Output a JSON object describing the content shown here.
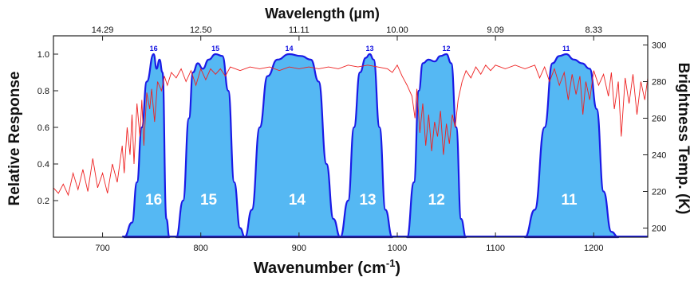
{
  "chart_data": {
    "type": "area",
    "xlabel_main": "Wavenumber (cm",
    "xlabel_sup": "-1",
    "xlabel_tail": ")",
    "x2label": "Wavelength (µm)",
    "ylabel": "Relative Response",
    "y2label": "Brightness Temp. (K)",
    "xlim": [
      650,
      1255
    ],
    "ylim": [
      0,
      1.1
    ],
    "y2lim": [
      195,
      305
    ],
    "x_ticks": [
      700,
      800,
      900,
      1000,
      1100,
      1200
    ],
    "x_tick_labels": [
      "700",
      "800",
      "900",
      "1000",
      "1100",
      "1200"
    ],
    "y_ticks": [
      0.2,
      0.4,
      0.6,
      0.8,
      1.0
    ],
    "y_tick_labels": [
      "0.2",
      "0.4",
      "0.6",
      "0.8",
      "1.0"
    ],
    "y2_ticks": [
      200,
      220,
      240,
      260,
      280,
      300
    ],
    "y2_tick_labels": [
      "200",
      "220",
      "240",
      "260",
      "280",
      "300"
    ],
    "x2_ticks": [
      {
        "wavenumber": 700,
        "label": "14.29"
      },
      {
        "wavenumber": 800,
        "label": "12.50"
      },
      {
        "wavenumber": 900,
        "label": "11.11"
      },
      {
        "wavenumber": 1000,
        "label": "10.00"
      },
      {
        "wavenumber": 1100,
        "label": "9.09"
      },
      {
        "wavenumber": 1200,
        "label": "8.33"
      }
    ],
    "bands": [
      {
        "name": "16",
        "center": 752,
        "profile": [
          [
            722,
            0
          ],
          [
            730,
            0.08
          ],
          [
            735,
            0.3
          ],
          [
            740,
            0.6
          ],
          [
            745,
            0.85
          ],
          [
            752,
            1.0
          ],
          [
            755,
            0.92
          ],
          [
            758,
            0.97
          ],
          [
            761,
            0.9
          ],
          [
            765,
            0.1
          ],
          [
            768,
            0
          ]
        ]
      },
      {
        "name": "15",
        "center": 808,
        "profile": [
          [
            775,
            0
          ],
          [
            782,
            0.2
          ],
          [
            788,
            0.65
          ],
          [
            792,
            0.9
          ],
          [
            797,
            0.95
          ],
          [
            802,
            0.92
          ],
          [
            808,
            0.97
          ],
          [
            815,
            1.0
          ],
          [
            822,
            0.99
          ],
          [
            828,
            0.8
          ],
          [
            834,
            0.3
          ],
          [
            840,
            0.05
          ],
          [
            845,
            0
          ]
        ]
      },
      {
        "name": "14",
        "center": 898,
        "profile": [
          [
            845,
            0
          ],
          [
            852,
            0.15
          ],
          [
            860,
            0.6
          ],
          [
            868,
            0.88
          ],
          [
            878,
            0.97
          ],
          [
            890,
            1.0
          ],
          [
            902,
            0.99
          ],
          [
            912,
            0.97
          ],
          [
            920,
            0.85
          ],
          [
            928,
            0.4
          ],
          [
            935,
            0.1
          ],
          [
            942,
            0
          ]
        ]
      },
      {
        "name": "13",
        "center": 970,
        "profile": [
          [
            942,
            0
          ],
          [
            950,
            0.2
          ],
          [
            956,
            0.6
          ],
          [
            962,
            0.9
          ],
          [
            968,
            0.98
          ],
          [
            972,
            1.0
          ],
          [
            976,
            0.97
          ],
          [
            982,
            0.6
          ],
          [
            988,
            0.15
          ],
          [
            995,
            0
          ]
        ]
      },
      {
        "name": "12",
        "center": 1040,
        "profile": [
          [
            1010,
            0
          ],
          [
            1017,
            0.3
          ],
          [
            1022,
            0.8
          ],
          [
            1026,
            0.95
          ],
          [
            1032,
            0.97
          ],
          [
            1038,
            0.96
          ],
          [
            1044,
            0.99
          ],
          [
            1050,
            1.0
          ],
          [
            1055,
            0.95
          ],
          [
            1060,
            0.6
          ],
          [
            1065,
            0.1
          ],
          [
            1070,
            0
          ]
        ]
      },
      {
        "name": "11",
        "center": 1175,
        "profile": [
          [
            1130,
            0
          ],
          [
            1140,
            0.15
          ],
          [
            1150,
            0.6
          ],
          [
            1158,
            0.95
          ],
          [
            1165,
            0.99
          ],
          [
            1172,
            1.0
          ],
          [
            1180,
            0.97
          ],
          [
            1188,
            0.95
          ],
          [
            1196,
            0.92
          ],
          [
            1203,
            0.7
          ],
          [
            1210,
            0.25
          ],
          [
            1218,
            0.03
          ],
          [
            1225,
            0
          ]
        ]
      }
    ],
    "brightness_temp_spectrum": [
      [
        650,
        222
      ],
      [
        655,
        219
      ],
      [
        660,
        224
      ],
      [
        665,
        218
      ],
      [
        670,
        230
      ],
      [
        675,
        221
      ],
      [
        680,
        232
      ],
      [
        685,
        220
      ],
      [
        690,
        238
      ],
      [
        695,
        222
      ],
      [
        700,
        230
      ],
      [
        705,
        219
      ],
      [
        710,
        235
      ],
      [
        715,
        225
      ],
      [
        720,
        245
      ],
      [
        722,
        230
      ],
      [
        725,
        255
      ],
      [
        728,
        240
      ],
      [
        730,
        262
      ],
      [
        732,
        235
      ],
      [
        735,
        268
      ],
      [
        738,
        250
      ],
      [
        740,
        270
      ],
      [
        742,
        245
      ],
      [
        745,
        274
      ],
      [
        748,
        265
      ],
      [
        750,
        276
      ],
      [
        753,
        258
      ],
      [
        756,
        280
      ],
      [
        760,
        275
      ],
      [
        763,
        283
      ],
      [
        766,
        278
      ],
      [
        770,
        285
      ],
      [
        775,
        282
      ],
      [
        780,
        287
      ],
      [
        785,
        280
      ],
      [
        790,
        286
      ],
      [
        795,
        278
      ],
      [
        800,
        287
      ],
      [
        805,
        281
      ],
      [
        810,
        287
      ],
      [
        815,
        284
      ],
      [
        820,
        287
      ],
      [
        825,
        283
      ],
      [
        830,
        288
      ],
      [
        840,
        286
      ],
      [
        850,
        288
      ],
      [
        860,
        287
      ],
      [
        870,
        288
      ],
      [
        880,
        286
      ],
      [
        890,
        288
      ],
      [
        900,
        287
      ],
      [
        910,
        288
      ],
      [
        920,
        287
      ],
      [
        930,
        288
      ],
      [
        940,
        287
      ],
      [
        950,
        289
      ],
      [
        960,
        288
      ],
      [
        970,
        289
      ],
      [
        980,
        288
      ],
      [
        990,
        287
      ],
      [
        995,
        285
      ],
      [
        1000,
        289
      ],
      [
        1005,
        283
      ],
      [
        1010,
        278
      ],
      [
        1015,
        272
      ],
      [
        1018,
        260
      ],
      [
        1020,
        276
      ],
      [
        1023,
        252
      ],
      [
        1026,
        268
      ],
      [
        1029,
        245
      ],
      [
        1032,
        262
      ],
      [
        1035,
        242
      ],
      [
        1038,
        258
      ],
      [
        1041,
        250
      ],
      [
        1044,
        264
      ],
      [
        1047,
        240
      ],
      [
        1050,
        257
      ],
      [
        1053,
        246
      ],
      [
        1056,
        262
      ],
      [
        1059,
        255
      ],
      [
        1062,
        270
      ],
      [
        1066,
        280
      ],
      [
        1070,
        286
      ],
      [
        1075,
        282
      ],
      [
        1080,
        288
      ],
      [
        1085,
        284
      ],
      [
        1090,
        289
      ],
      [
        1095,
        286
      ],
      [
        1100,
        289
      ],
      [
        1110,
        287
      ],
      [
        1120,
        289
      ],
      [
        1130,
        287
      ],
      [
        1140,
        289
      ],
      [
        1145,
        282
      ],
      [
        1150,
        288
      ],
      [
        1155,
        280
      ],
      [
        1160,
        287
      ],
      [
        1165,
        278
      ],
      [
        1170,
        285
      ],
      [
        1174,
        270
      ],
      [
        1178,
        284
      ],
      [
        1182,
        273
      ],
      [
        1186,
        283
      ],
      [
        1189,
        262
      ],
      [
        1192,
        280
      ],
      [
        1196,
        270
      ],
      [
        1200,
        286
      ],
      [
        1205,
        278
      ],
      [
        1210,
        284
      ],
      [
        1215,
        272
      ],
      [
        1218,
        285
      ],
      [
        1221,
        265
      ],
      [
        1225,
        280
      ],
      [
        1228,
        250
      ],
      [
        1232,
        282
      ],
      [
        1236,
        268
      ],
      [
        1240,
        284
      ],
      [
        1244,
        262
      ],
      [
        1248,
        280
      ],
      [
        1252,
        270
      ],
      [
        1255,
        282
      ]
    ],
    "colors": {
      "band_fill": "#55b8f3",
      "band_edge": "#1a1ae6",
      "spectrum": "#ee2020",
      "frame": "#222222"
    },
    "grid": false
  }
}
